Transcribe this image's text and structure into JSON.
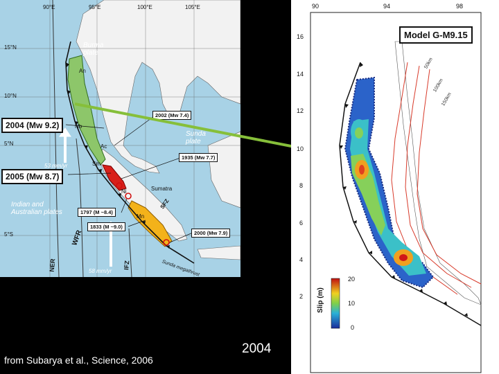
{
  "left_map": {
    "coords": {
      "lon_90": "90°E",
      "lon_95": "95°E",
      "lon_100": "100°E",
      "lon_105": "105°E",
      "lat_15": "15°N",
      "lat_10": "10°N",
      "lat_5n": "5°N",
      "lat_5s": "5°S"
    },
    "plates": {
      "burma": "Burma plate",
      "sunda": "Sunda plate",
      "indian": "Indian and Australian plates"
    },
    "eq_2004": "2004 (Mw 9.2)",
    "eq_2005": "2005 (Mw 8.7)",
    "eq_2002": "2002 (Mw 7.4)",
    "eq_1935": "1935 (Mw 7.7)",
    "eq_1797": "1797 (M ~8.4)",
    "eq_1833": "1833 (M ~9.0)",
    "eq_2000": "2000 (Mw 7.9)",
    "places": {
      "an": "An",
      "nb": "Nb",
      "ac": "Ac",
      "sm": "Sm",
      "ni": "Ni",
      "mn": "Mn",
      "sumatra": "Sumatra"
    },
    "faults": {
      "wfr": "WFR",
      "ner": "NER",
      "ifz": "IFZ",
      "sfz": "SFZ",
      "megathrust": "Sunda megathrust"
    },
    "rates": {
      "r1": "53 mm/yr",
      "r2": "58 mm/yr"
    }
  },
  "right_map": {
    "model_title": "Model G-M9.15",
    "x_ticks": [
      "90",
      "94",
      "98"
    ],
    "y_ticks": [
      "16",
      "14",
      "12",
      "10",
      "8",
      "6",
      "4",
      "2"
    ],
    "contours": [
      "50km",
      "100km",
      "150km"
    ],
    "colorbar": {
      "label": "Slip (m)",
      "ticks": [
        "20",
        "10",
        "0"
      ]
    }
  },
  "caption": "from Subarya et al., Science, 2006",
  "year_label": "2004"
}
